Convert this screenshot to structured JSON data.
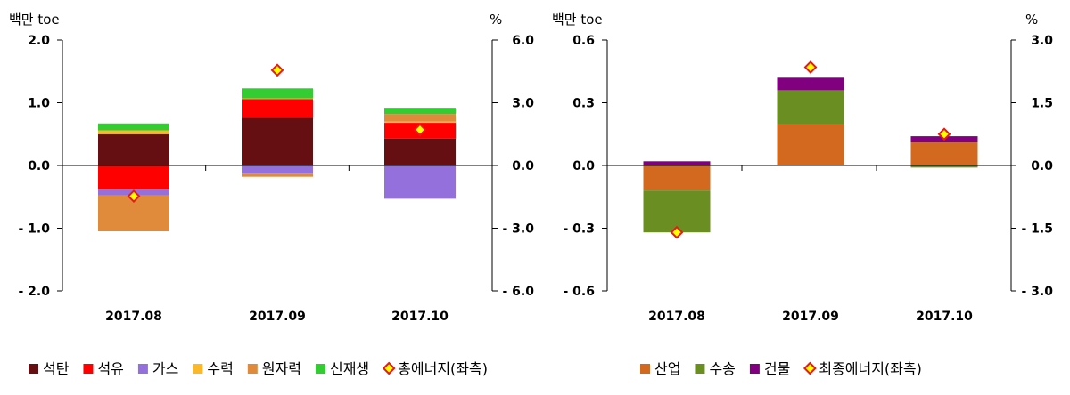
{
  "chart_data": [
    {
      "type": "bar",
      "stacked": true,
      "categories": [
        "2017.08",
        "2017.09",
        "2017.10"
      ],
      "left_axis_unit": "백만 toe",
      "right_axis_unit": "%",
      "ylim_left": [
        -2.0,
        2.0
      ],
      "ylim_right": [
        -6.0,
        6.0
      ],
      "yticks_left": [
        "2.0",
        "1.0",
        "0.0",
        "- 1.0",
        "- 2.0"
      ],
      "yticks_right": [
        "6.0",
        "3.0",
        "0.0",
        "- 3.0",
        "- 6.0"
      ],
      "series": [
        {
          "name": "석탄",
          "color": "#660f12",
          "values": [
            0.5,
            0.76,
            0.43
          ]
        },
        {
          "name": "석유",
          "color": "#ff0000",
          "values": [
            -0.38,
            0.3,
            0.25
          ]
        },
        {
          "name": "가스",
          "color": "#9370db",
          "values": [
            -0.1,
            -0.13,
            -0.53
          ]
        },
        {
          "name": "수력",
          "color": "#fbb829",
          "values": [
            0.06,
            0.01,
            0.02
          ]
        },
        {
          "name": "원자력",
          "color": "#e08a3c",
          "values": [
            -0.57,
            -0.05,
            0.12
          ]
        },
        {
          "name": "신재생",
          "color": "#33cc33",
          "values": [
            0.11,
            0.16,
            0.1
          ]
        }
      ],
      "line": {
        "name": "총에너지(좌측)",
        "marker_color": "#ffff00",
        "marker_border": "#e41a1c",
        "values": [
          -0.49,
          1.52,
          0.57
        ]
      }
    },
    {
      "type": "bar",
      "stacked": true,
      "categories": [
        "2017.08",
        "2017.09",
        "2017.10"
      ],
      "left_axis_unit": "백만 toe",
      "right_axis_unit": "%",
      "ylim_left": [
        -0.6,
        0.6
      ],
      "ylim_right": [
        -3.0,
        3.0
      ],
      "yticks_left": [
        "0.6",
        "0.3",
        "0.0",
        "- 0.3",
        "- 0.6"
      ],
      "yticks_right": [
        "3.0",
        "1.5",
        "0.0",
        "- 1.5",
        "- 3.0"
      ],
      "series": [
        {
          "name": "산업",
          "color": "#d2691e",
          "values": [
            -0.12,
            0.2,
            0.11
          ]
        },
        {
          "name": "수송",
          "color": "#6b8e23",
          "values": [
            -0.2,
            0.16,
            -0.01
          ]
        },
        {
          "name": "건물",
          "color": "#800080",
          "values": [
            0.02,
            0.06,
            0.03
          ]
        }
      ],
      "line": {
        "name": "최종에너지(좌측)",
        "marker_color": "#ffff00",
        "marker_border": "#e41a1c",
        "values": [
          -0.32,
          0.47,
          0.15
        ]
      }
    }
  ]
}
